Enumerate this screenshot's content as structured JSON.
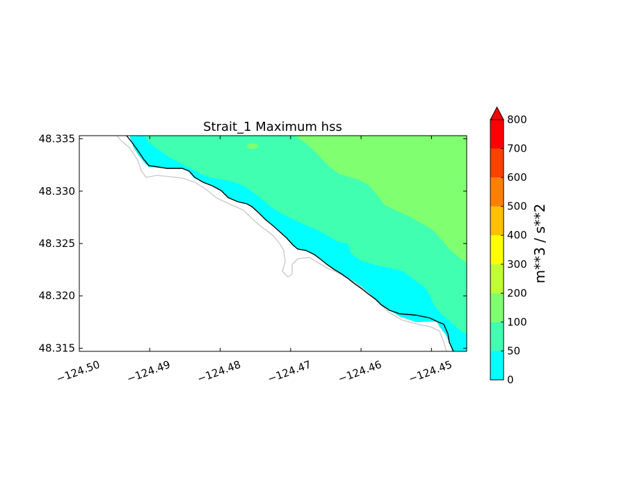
{
  "chart_data": {
    "type": "heatmap",
    "subtype": "filled-contour map",
    "title": "Strait_1 Maximum hss",
    "xlabel": "",
    "ylabel": "",
    "xlim": [
      -124.5,
      -124.445
    ],
    "ylim": [
      48.3147,
      48.3353
    ],
    "x_ticks": [
      "−124.50",
      "−124.49",
      "−124.48",
      "−124.47",
      "−124.46",
      "−124.45"
    ],
    "x_tick_values": [
      -124.5,
      -124.49,
      -124.48,
      -124.47,
      -124.46,
      -124.45
    ],
    "y_ticks": [
      "48.335",
      "48.330",
      "48.325",
      "48.320",
      "48.315"
    ],
    "y_tick_values": [
      48.335,
      48.33,
      48.325,
      48.32,
      48.315
    ],
    "colorbar": {
      "label": "m**3 / s**2",
      "extend": "max",
      "levels": [
        0,
        50,
        100,
        200,
        300,
        400,
        500,
        600,
        700,
        800
      ],
      "tick_labels": [
        "0",
        "50",
        "100",
        "200",
        "300",
        "400",
        "500",
        "600",
        "700",
        "800"
      ],
      "colors": [
        "#00ffff",
        "#40ffb0",
        "#80ff70",
        "#c0ff30",
        "#ffff00",
        "#ffc000",
        "#ff8000",
        "#ff4000",
        "#ff0000"
      ],
      "extend_color": "#ff0000"
    },
    "regions": [
      {
        "range": [
          0,
          50
        ],
        "color": "#00ffff"
      },
      {
        "range": [
          50,
          100
        ],
        "color": "#40ffb0"
      },
      {
        "range": [
          100,
          200
        ],
        "color": "#80ff70"
      }
    ],
    "coastline_color": "#000000",
    "shoreline_outline_color": "#d0d0d0",
    "land_color": "#ffffff",
    "grid": false
  }
}
